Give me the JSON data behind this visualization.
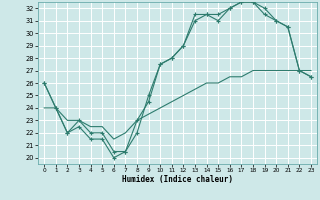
{
  "xlabel": "Humidex (Indice chaleur)",
  "bg_color": "#cee8e8",
  "grid_color": "#ffffff",
  "line_color": "#2e7c6e",
  "xlim": [
    -0.5,
    23.5
  ],
  "ylim": [
    19.5,
    32.5
  ],
  "xticks": [
    0,
    1,
    2,
    3,
    4,
    5,
    6,
    7,
    8,
    9,
    10,
    11,
    12,
    13,
    14,
    15,
    16,
    17,
    18,
    19,
    20,
    21,
    22,
    23
  ],
  "yticks": [
    20,
    21,
    22,
    23,
    24,
    25,
    26,
    27,
    28,
    29,
    30,
    31,
    32
  ],
  "series1_x": [
    0,
    1,
    2,
    3,
    4,
    5,
    6,
    7,
    8,
    9,
    10,
    11,
    12,
    13,
    14,
    15,
    16,
    17,
    18,
    19,
    20,
    21,
    22,
    23
  ],
  "series1_y": [
    26,
    24,
    22,
    22.5,
    21.5,
    21.5,
    20,
    20.5,
    23,
    24.5,
    27.5,
    28,
    29,
    31.5,
    31.5,
    31,
    32,
    32.5,
    32.5,
    32,
    31,
    30.5,
    27,
    26.5
  ],
  "series2_x": [
    0,
    1,
    2,
    3,
    4,
    5,
    6,
    7,
    8,
    9,
    10,
    11,
    12,
    13,
    14,
    15,
    16,
    17,
    18,
    19,
    20,
    21,
    22,
    23
  ],
  "series2_y": [
    26,
    24,
    22,
    23,
    22,
    22,
    20.5,
    20.5,
    22,
    25,
    27.5,
    28,
    29,
    31,
    31.5,
    31.5,
    32,
    32.5,
    32.5,
    31.5,
    31,
    30.5,
    27,
    26.5
  ],
  "series3_x": [
    0,
    1,
    2,
    3,
    4,
    5,
    6,
    7,
    8,
    9,
    10,
    11,
    12,
    13,
    14,
    15,
    16,
    17,
    18,
    19,
    20,
    21,
    22,
    23
  ],
  "series3_y": [
    24,
    24,
    23,
    23,
    22.5,
    22.5,
    21.5,
    22,
    23,
    23.5,
    24,
    24.5,
    25,
    25.5,
    26,
    26,
    26.5,
    26.5,
    27,
    27,
    27,
    27,
    27,
    27
  ]
}
